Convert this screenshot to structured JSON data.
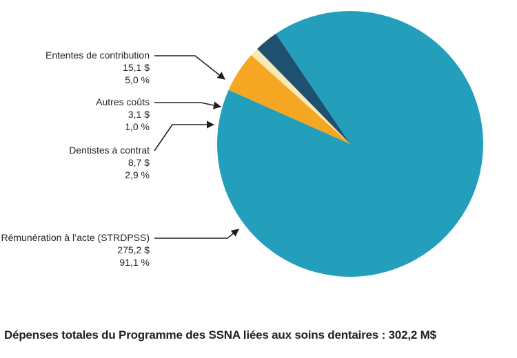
{
  "chart_data": {
    "type": "pie",
    "caption": "Dépenses totales du Programme des SSNA liées aux soins dentaires : 302,2 M$",
    "slices": [
      {
        "name": "Rémunération à l’acte (STRDPSS)",
        "value": 275.2,
        "value_label": "275,2 $",
        "percent_label": "91,1 %",
        "color": "#239fbb"
      },
      {
        "name": "Ententes de contribution",
        "value": 15.1,
        "value_label": "15,1 $",
        "percent_label": "5,0 %",
        "color": "#f5a623"
      },
      {
        "name": "Autres coûts",
        "value": 3.1,
        "value_label": "3,1 $",
        "percent_label": "1,0 %",
        "color": "#f6ebb5"
      },
      {
        "name": "Dentistes à contrat",
        "value": 8.7,
        "value_label": "8,7 $",
        "percent_label": "2,9 %",
        "color": "#1f506f"
      }
    ]
  }
}
